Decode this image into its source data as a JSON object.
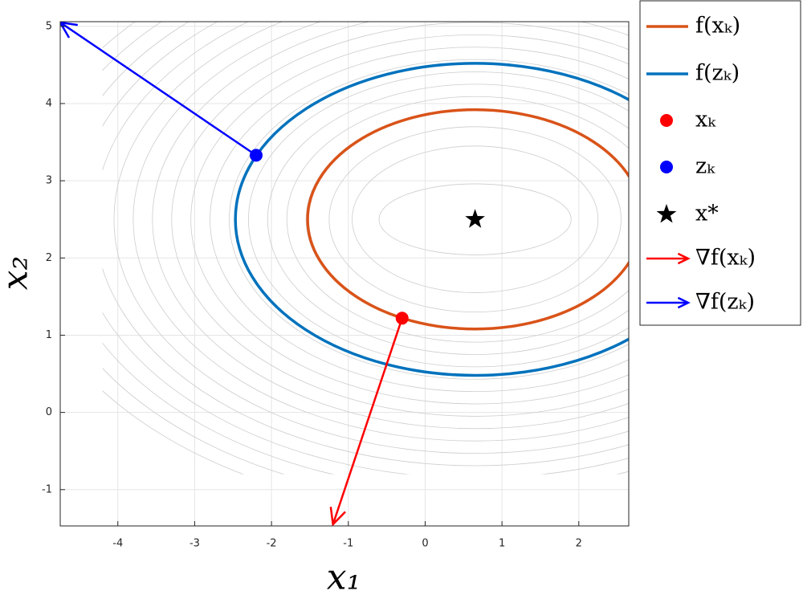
{
  "chart_data": {
    "type": "contour",
    "xlabel": "x₁",
    "ylabel": "x₂",
    "xlim": [
      -4.75,
      2.65
    ],
    "ylim": [
      -1.47,
      5.06
    ],
    "xticks": [
      -4,
      -3,
      -2,
      -1,
      0,
      1,
      2
    ],
    "yticks": [
      -1,
      0,
      1,
      2,
      3,
      4,
      5
    ],
    "grid": true,
    "contours": {
      "color": "#cccccc",
      "center": [
        0.65,
        2.5
      ],
      "xrange": [
        -4.2,
        2.7
      ],
      "yrange": [
        -0.8,
        5.1
      ],
      "rx": [
        1.25,
        1.6,
        1.9,
        2.2,
        2.45,
        2.7,
        2.95,
        3.2,
        3.45,
        3.7,
        3.95,
        4.2,
        4.45,
        4.7,
        4.95,
        5.2,
        5.45,
        5.7,
        5.95
      ],
      "ry": [
        0.46,
        0.95,
        1.2,
        1.42,
        1.59,
        1.75,
        1.91,
        2.07,
        2.23,
        2.39,
        2.55,
        2.71,
        2.87,
        3.03,
        3.19,
        3.35,
        3.51,
        3.67,
        3.83
      ]
    },
    "series": [
      {
        "name": "f(xₖ)",
        "kind": "ellipse",
        "color": "#d95319",
        "center": [
          0.65,
          2.5
        ],
        "rx": 2.18,
        "ry": 1.42
      },
      {
        "name": "f(zₖ)",
        "kind": "ellipse",
        "color": "#0072bd",
        "center": [
          0.65,
          2.5
        ],
        "rx": 3.12,
        "ry": 2.02
      },
      {
        "name": "xₖ",
        "kind": "point",
        "color": "#ff0000",
        "x": -0.3,
        "y": 1.22
      },
      {
        "name": "zₖ",
        "kind": "point",
        "color": "#0000ff",
        "x": -2.2,
        "y": 3.33
      },
      {
        "name": "x*",
        "kind": "star",
        "color": "#000000",
        "x": 0.65,
        "y": 2.5
      },
      {
        "name": "∇f(xₖ)",
        "kind": "arrow",
        "color": "#ff0000",
        "x": [
          -0.3,
          -1.2
        ],
        "y": [
          1.22,
          -1.45
        ]
      },
      {
        "name": "∇f(zₖ)",
        "kind": "arrow",
        "color": "#0000ff",
        "x": [
          -2.2,
          -4.75
        ],
        "y": [
          3.33,
          5.05
        ]
      }
    ],
    "legend": "outside-right-top"
  }
}
